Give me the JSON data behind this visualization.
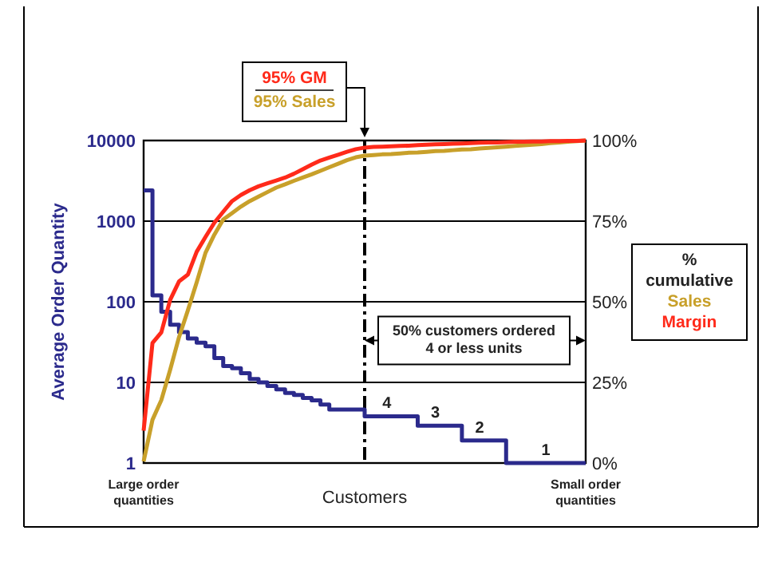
{
  "chart_data": {
    "type": "line",
    "xlabel": "Customers",
    "ylabel": "Average Order Quantity",
    "legend_title": "% cumulative",
    "log": "y",
    "grid": "y",
    "legend": "right",
    "line_style": "solid",
    "categories": [
      "Large order quantities",
      null,
      null,
      null,
      null,
      null,
      null,
      null,
      null,
      null,
      null,
      null,
      null,
      null,
      null,
      null,
      null,
      null,
      null,
      null,
      null,
      null,
      null,
      null,
      null,
      null,
      null,
      null,
      null,
      null,
      null,
      null,
      null,
      null,
      null,
      null,
      null,
      null,
      null,
      null,
      null,
      null,
      null,
      null,
      null,
      null,
      null,
      null,
      null,
      null,
      "Small order quantities"
    ],
    "ylim": [
      1,
      10000
    ],
    "yticks": [
      1,
      10,
      100,
      1000,
      10000
    ],
    "y2lim": [
      0,
      100
    ],
    "y2ticks": [
      {
        "value": 0,
        "label": "0%"
      },
      {
        "value": 25,
        "label": "25%"
      },
      {
        "value": 50,
        "label": "50%"
      },
      {
        "value": 75,
        "label": "75%"
      },
      {
        "value": 100,
        "label": "100%"
      }
    ],
    "series": [
      {
        "type": "step",
        "color": "#2b2a8c",
        "values": [
          2400,
          120,
          75,
          52,
          42,
          35,
          31,
          28,
          20,
          16,
          15,
          13,
          11,
          10,
          9,
          8.2,
          7.4,
          7,
          6.4,
          6,
          5.3,
          4.6,
          4.6,
          4.6,
          4.6,
          3.8,
          3.8,
          3.8,
          3.8,
          3.8,
          3.8,
          2.9,
          2.9,
          2.9,
          2.9,
          2.9,
          1.9,
          1.9,
          1.9,
          1.9,
          1.9,
          1,
          1,
          1,
          1,
          1,
          1,
          1,
          1,
          1,
          1
        ]
      },
      {
        "name": "Sales",
        "axis": "y2",
        "color": "#c8a02a",
        "values": [
          0.5,
          13.4,
          19.5,
          28.9,
          39,
          47.3,
          56,
          65.2,
          70.8,
          75.5,
          77.5,
          79.5,
          81.2,
          82.6,
          84,
          85.4,
          86.4,
          87.5,
          88.5,
          89.5,
          90.6,
          91.7,
          92.8,
          93.9,
          94.8,
          95.3,
          95.5,
          95.7,
          95.8,
          96,
          96.2,
          96.3,
          96.5,
          96.7,
          96.8,
          97,
          97.2,
          97.3,
          97.5,
          97.7,
          97.9,
          98.1,
          98.3,
          98.5,
          98.7,
          98.9,
          99.2,
          99.4,
          99.6,
          99.8,
          100
        ]
      },
      {
        "name": "Margin",
        "axis": "y2",
        "color": "#ff2a1a",
        "values": [
          10,
          37.2,
          40.5,
          50.6,
          56.3,
          58.4,
          65.5,
          70.1,
          74.5,
          77.9,
          81.2,
          83.1,
          84.6,
          85.8,
          86.7,
          87.6,
          88.5,
          89.7,
          91.1,
          92.5,
          93.8,
          94.7,
          95.6,
          96.5,
          97.3,
          97.8,
          98,
          98.1,
          98.2,
          98.3,
          98.4,
          98.6,
          98.7,
          98.8,
          98.9,
          99,
          99.1,
          99.2,
          99.3,
          99.4,
          99.4,
          99.5,
          99.6,
          99.6,
          99.7,
          99.7,
          99.8,
          99.8,
          99.9,
          99.9,
          100
        ]
      }
    ],
    "annotations": [
      "95% GM",
      "95% Sales",
      "50% customers ordered 4 or less units",
      "4",
      "3",
      "2",
      "1"
    ]
  }
}
